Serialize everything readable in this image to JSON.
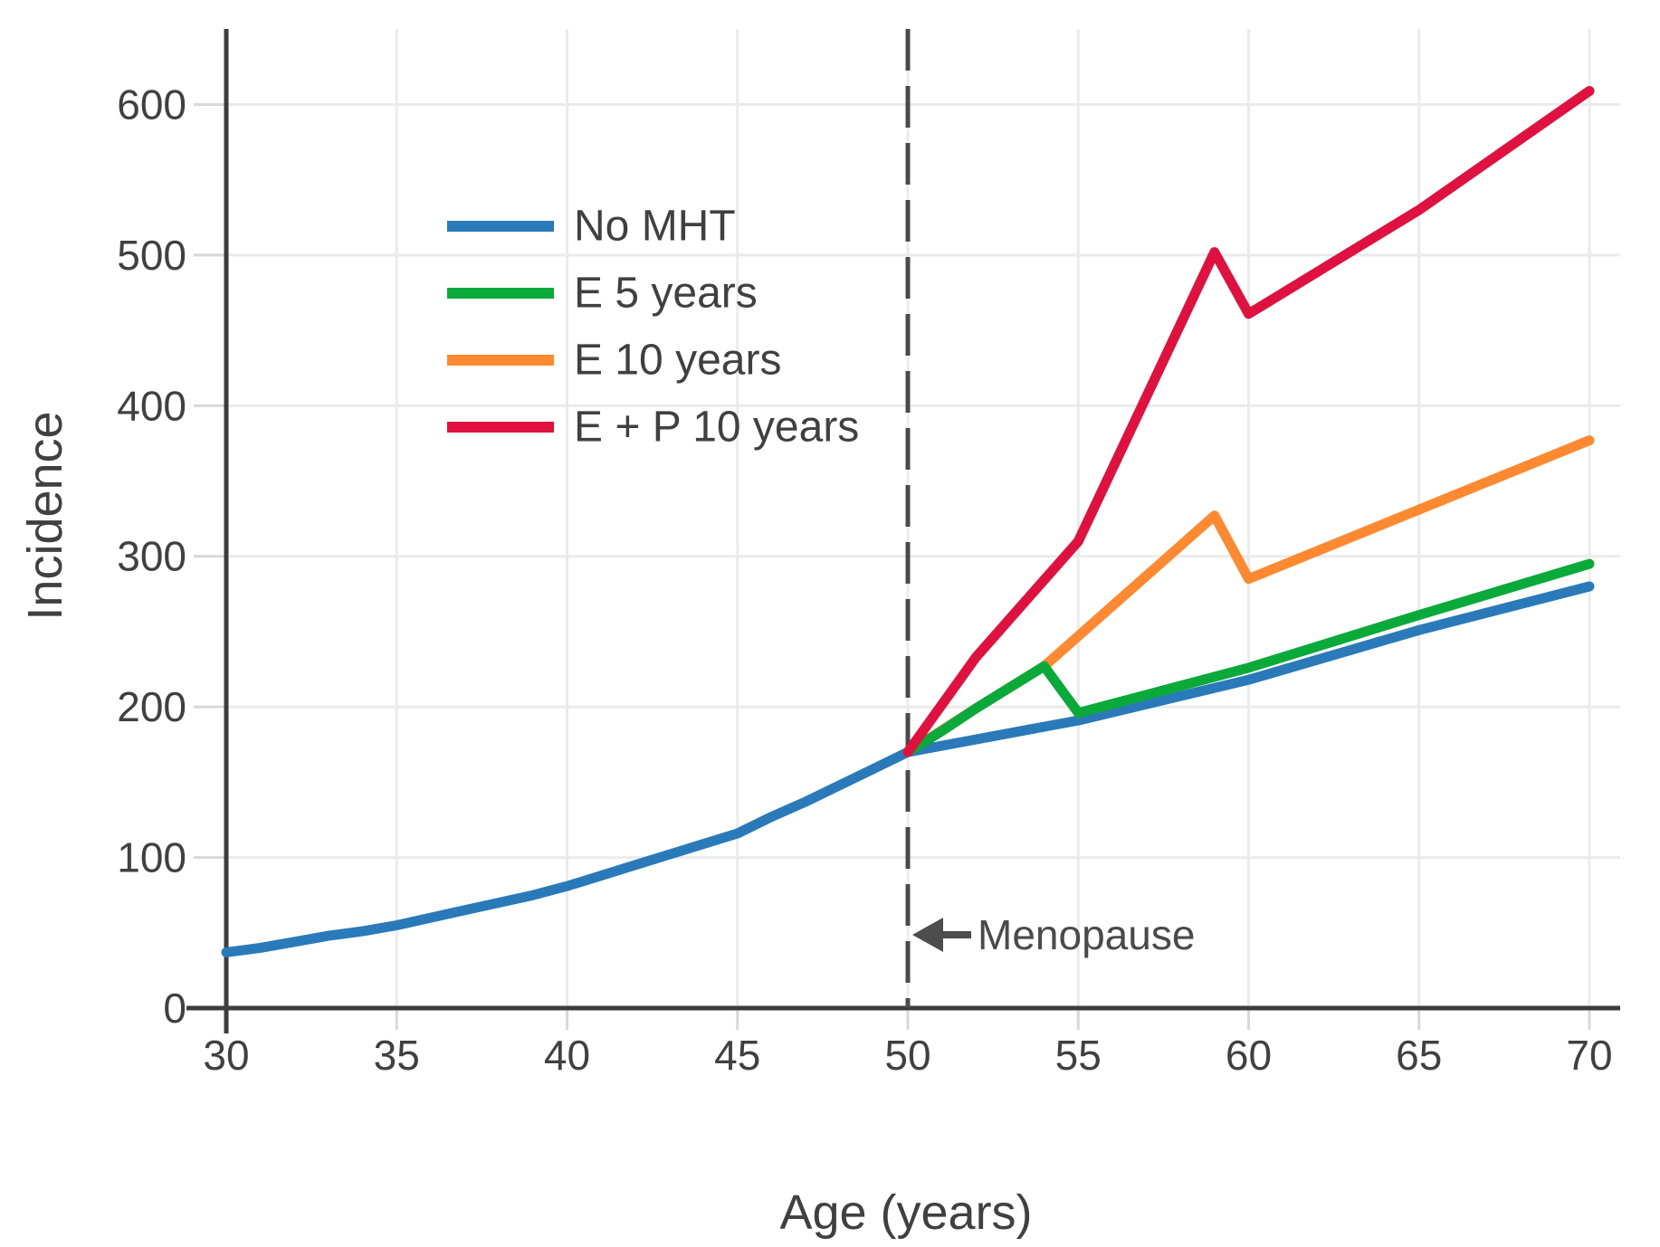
{
  "figure": {
    "background": "#ffffff",
    "axis_color": "#3c3c3c",
    "grid_color": "#ebebeb",
    "tick_color": "#d8d8d8",
    "text_color": "#404040",
    "dashed_line_color": "#4a4a4a",
    "arrow_color": "#4d4d4d"
  },
  "chart_data": {
    "type": "line",
    "title": "",
    "xlabel": "Age (years)",
    "ylabel": "Incidence",
    "xlim": [
      30,
      70
    ],
    "ylim": [
      0,
      650
    ],
    "x_ticks": [
      30,
      35,
      40,
      45,
      50,
      55,
      60,
      65,
      70
    ],
    "y_ticks": [
      0,
      100,
      200,
      300,
      400,
      500,
      600
    ],
    "grid": true,
    "legend_position": "upper-left-inside",
    "menopause_age": 50,
    "annotation": {
      "label": "Menopause",
      "icon": "left-arrow",
      "x": 50,
      "y": 50
    },
    "series": [
      {
        "name": "No MHT",
        "color": "#2a7ab9",
        "points": [
          [
            30,
            37
          ],
          [
            31,
            40
          ],
          [
            32,
            44
          ],
          [
            33,
            48
          ],
          [
            34,
            51
          ],
          [
            35,
            55
          ],
          [
            36,
            60
          ],
          [
            37,
            65
          ],
          [
            38,
            70
          ],
          [
            39,
            75
          ],
          [
            40,
            81
          ],
          [
            41,
            88
          ],
          [
            42,
            95
          ],
          [
            43,
            102
          ],
          [
            44,
            109
          ],
          [
            45,
            116
          ],
          [
            46,
            127
          ],
          [
            47,
            137
          ],
          [
            48,
            148
          ],
          [
            49,
            159
          ],
          [
            50,
            170
          ],
          [
            55,
            191
          ],
          [
            60,
            218
          ],
          [
            65,
            251
          ],
          [
            70,
            280
          ]
        ]
      },
      {
        "name": "E 5 years",
        "color": "#0aaa3a",
        "points": [
          [
            50,
            170
          ],
          [
            51,
            184
          ],
          [
            52,
            199
          ],
          [
            53,
            213
          ],
          [
            54,
            227
          ],
          [
            55,
            196
          ],
          [
            60,
            226
          ],
          [
            65,
            261
          ],
          [
            70,
            295
          ]
        ]
      },
      {
        "name": "E 10 years",
        "color": "#ff8931",
        "points": [
          [
            50,
            170
          ],
          [
            52,
            199
          ],
          [
            54,
            227
          ],
          [
            59,
            327
          ],
          [
            60,
            285
          ],
          [
            65,
            331
          ],
          [
            70,
            377
          ]
        ]
      },
      {
        "name": "E + P 10 years",
        "color": "#e0103f",
        "points": [
          [
            50,
            170
          ],
          [
            52,
            233
          ],
          [
            55,
            310
          ],
          [
            59,
            502
          ],
          [
            60,
            461
          ],
          [
            65,
            530
          ],
          [
            70,
            609
          ]
        ]
      }
    ]
  }
}
